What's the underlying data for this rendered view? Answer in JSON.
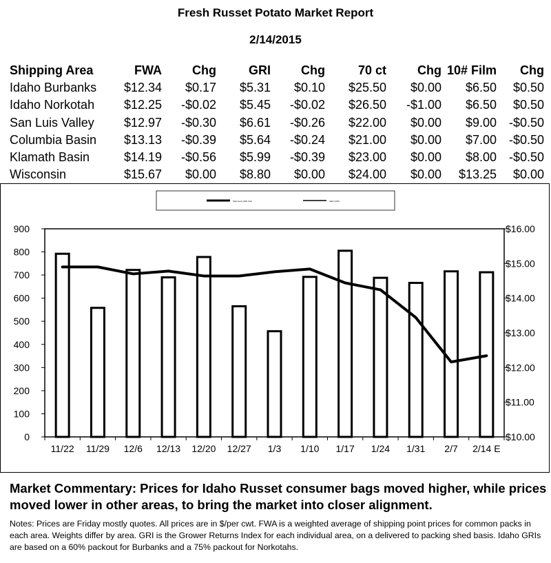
{
  "header": {
    "title": "Fresh Russet Potato Market Report",
    "date": "2/14/2015"
  },
  "table": {
    "columns": [
      "Shipping Area",
      "FWA",
      "Chg",
      "GRI",
      "Chg",
      "70 ct",
      "Chg",
      "10# Film",
      "Chg"
    ],
    "rows": [
      [
        "Idaho Burbanks",
        "$12.34",
        "$0.17",
        "$5.31",
        "$0.10",
        "$25.50",
        "$0.00",
        "$6.50",
        "$0.50"
      ],
      [
        "Idaho Norkotah",
        "$12.25",
        "-$0.02",
        "$5.45",
        "-$0.02",
        "$26.50",
        "-$1.00",
        "$6.50",
        "$0.50"
      ],
      [
        "San Luis Valley",
        "$12.97",
        "-$0.30",
        "$6.61",
        "-$0.26",
        "$22.00",
        "$0.00",
        "$9.00",
        "-$0.50"
      ],
      [
        "Columbia Basin",
        "$13.13",
        "-$0.39",
        "$5.64",
        "-$0.24",
        "$21.00",
        "$0.00",
        "$7.00",
        "-$0.50"
      ],
      [
        "Klamath Basin",
        "$14.19",
        "-$0.56",
        "$5.99",
        "-$0.39",
        "$23.00",
        "$0.00",
        "$8.00",
        "-$0.50"
      ],
      [
        "Wisconsin",
        "$15.67",
        "$0.00",
        "$8.80",
        "$0.00",
        "$24.00",
        "$0.00",
        "$13.25",
        "$0.00"
      ]
    ]
  },
  "chart_data": {
    "type": "bar",
    "categories": [
      "11/22",
      "11/29",
      "12/6",
      "12/13",
      "12/20",
      "12/27",
      "1/3",
      "1/10",
      "1/17",
      "1/24",
      "1/31",
      "2/7",
      "2/14 E"
    ],
    "series": [
      {
        "name": "Shipments (000 Cwt)",
        "type": "bar",
        "axis": "left",
        "values": [
          792,
          558,
          722,
          690,
          778,
          565,
          457,
          692,
          805,
          688,
          666,
          716,
          712
        ]
      },
      {
        "name": "Idaho FWA",
        "type": "line",
        "axis": "right",
        "values": [
          14.9,
          14.9,
          14.7,
          14.78,
          14.64,
          14.64,
          14.76,
          14.84,
          14.44,
          14.24,
          13.44,
          12.16,
          12.34
        ]
      }
    ],
    "y_left": {
      "min": 0,
      "max": 900,
      "ticks": [
        "0",
        "100",
        "200",
        "300",
        "400",
        "500",
        "600",
        "700",
        "800",
        "900"
      ]
    },
    "y_right": {
      "min": 10,
      "max": 16,
      "ticks": [
        "$10.00",
        "$11.00",
        "$12.00",
        "$13.00",
        "$14.00",
        "$15.00",
        "$16.00"
      ]
    },
    "legend_position": "top",
    "grid": false,
    "colors": {
      "bar_fill": "#ffffff",
      "bar_stroke": "#000000",
      "line": "#000000"
    }
  },
  "commentary": "Market Commentary: Prices for Idaho Russet consumer bags moved higher, while prices moved lower in other areas, to bring the market into closer alignment.",
  "notes": "Notes: Prices are Friday mostly quotes. All prices are in $/per cwt. FWA is a weighted average of shipping point prices for  common packs in each area. Weights differ by area. GRI is the Grower Returns Index for each individual area, on a delivered to packing shed basis. Idaho GRIs are based on a 60% packout for Burbanks and a 75% packout for Norkotahs."
}
